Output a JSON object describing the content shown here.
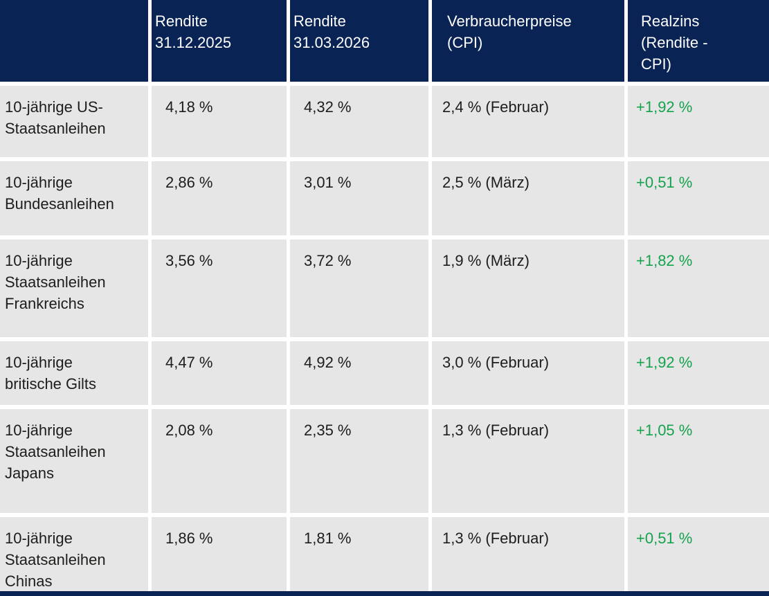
{
  "colors": {
    "header_bg": "#0a2355",
    "row_bg": "#e6e6e6",
    "positive_green": "#15a24d",
    "body_text": "#1d1d1b",
    "header_text": "#ffffff"
  },
  "table": {
    "headers": [
      "",
      "Rendite\n31.12.2025",
      "Rendite\n31.03.2026",
      "Verbraucherpreise\n(CPI)",
      "Realzins\n(Rendite -\nCPI)"
    ],
    "rows": [
      {
        "label": "10-jährige US-\nStaatsanleihen",
        "rendite_31_12_2025": "4,18 %",
        "rendite_31_03_2026": "4,32 %",
        "cpi": "2,4 % (Februar)",
        "realzins": "+1,92 %"
      },
      {
        "label": "10-jährige\nBundesanleihen",
        "rendite_31_12_2025": "2,86 %",
        "rendite_31_03_2026": "3,01 %",
        "cpi": "2,5 % (März)",
        "realzins": "+0,51 %"
      },
      {
        "label": "10-jährige\nStaatsanleihen\nFrankreichs",
        "rendite_31_12_2025": "3,56 %",
        "rendite_31_03_2026": "3,72 %",
        "cpi": "1,9 % (März)",
        "realzins": "+1,82 %"
      },
      {
        "label": "10-jährige\nbritische Gilts",
        "rendite_31_12_2025": "4,47 %",
        "rendite_31_03_2026": "4,92 %",
        "cpi": "3,0 % (Februar)",
        "realzins": "+1,92 %"
      },
      {
        "label": "10-jährige\nStaatsanleihen\nJapans",
        "rendite_31_12_2025": "2,08 %",
        "rendite_31_03_2026": "2,35 %",
        "cpi": "1,3 % (Februar)",
        "realzins": "+1,05 %"
      },
      {
        "label": "10-jährige\nStaatsanleihen\nChinas",
        "rendite_31_12_2025": "1,86 %",
        "rendite_31_03_2026": "1,81 %",
        "cpi": "1,3 % (Februar)",
        "realzins": "+0,51 %"
      }
    ]
  },
  "chart_data": {
    "type": "table",
    "title": "",
    "columns": [
      "",
      "Rendite 31.12.2025",
      "Rendite 31.03.2026",
      "Verbraucherpreise (CPI)",
      "Realzins (Rendite - CPI)"
    ],
    "rows": [
      [
        "10-jährige US-Staatsanleihen",
        "4,18 %",
        "4,32 %",
        "2,4 % (Februar)",
        "+1,92 %"
      ],
      [
        "10-jährige Bundesanleihen",
        "2,86 %",
        "3,01 %",
        "2,5 % (März)",
        "+0,51 %"
      ],
      [
        "10-jährige Staatsanleihen Frankreichs",
        "3,56 %",
        "3,72 %",
        "1,9 % (März)",
        "+1,82 %"
      ],
      [
        "10-jährige britische Gilts",
        "4,47 %",
        "4,92 %",
        "3,0 % (Februar)",
        "+1,92 %"
      ],
      [
        "10-jährige Staatsanleihen Japans",
        "2,08 %",
        "2,35 %",
        "1,3 % (Februar)",
        "+1,05 %"
      ],
      [
        "10-jährige Staatsanleihen Chinas",
        "1,86 %",
        "1,81 %",
        "1,3 % (Februar)",
        "+0,51 %"
      ]
    ],
    "numeric": {
      "series": [
        {
          "name": "Rendite 31.12.2025 (%)",
          "values": [
            4.18,
            2.86,
            3.56,
            4.47,
            2.08,
            1.86
          ]
        },
        {
          "name": "Rendite 31.03.2026 (%)",
          "values": [
            4.32,
            3.01,
            3.72,
            4.92,
            2.35,
            1.81
          ]
        },
        {
          "name": "Verbraucherpreise CPI (%)",
          "values": [
            2.4,
            2.5,
            1.9,
            3.0,
            1.3,
            1.3
          ]
        },
        {
          "name": "Realzins (%)",
          "values": [
            1.92,
            0.51,
            1.82,
            1.92,
            1.05,
            0.51
          ]
        }
      ],
      "categories": [
        "10-jährige US-Staatsanleihen",
        "10-jährige Bundesanleihen",
        "10-jährige Staatsanleihen Frankreichs",
        "10-jährige britische Gilts",
        "10-jährige Staatsanleihen Japans",
        "10-jährige Staatsanleihen Chinas"
      ]
    }
  }
}
